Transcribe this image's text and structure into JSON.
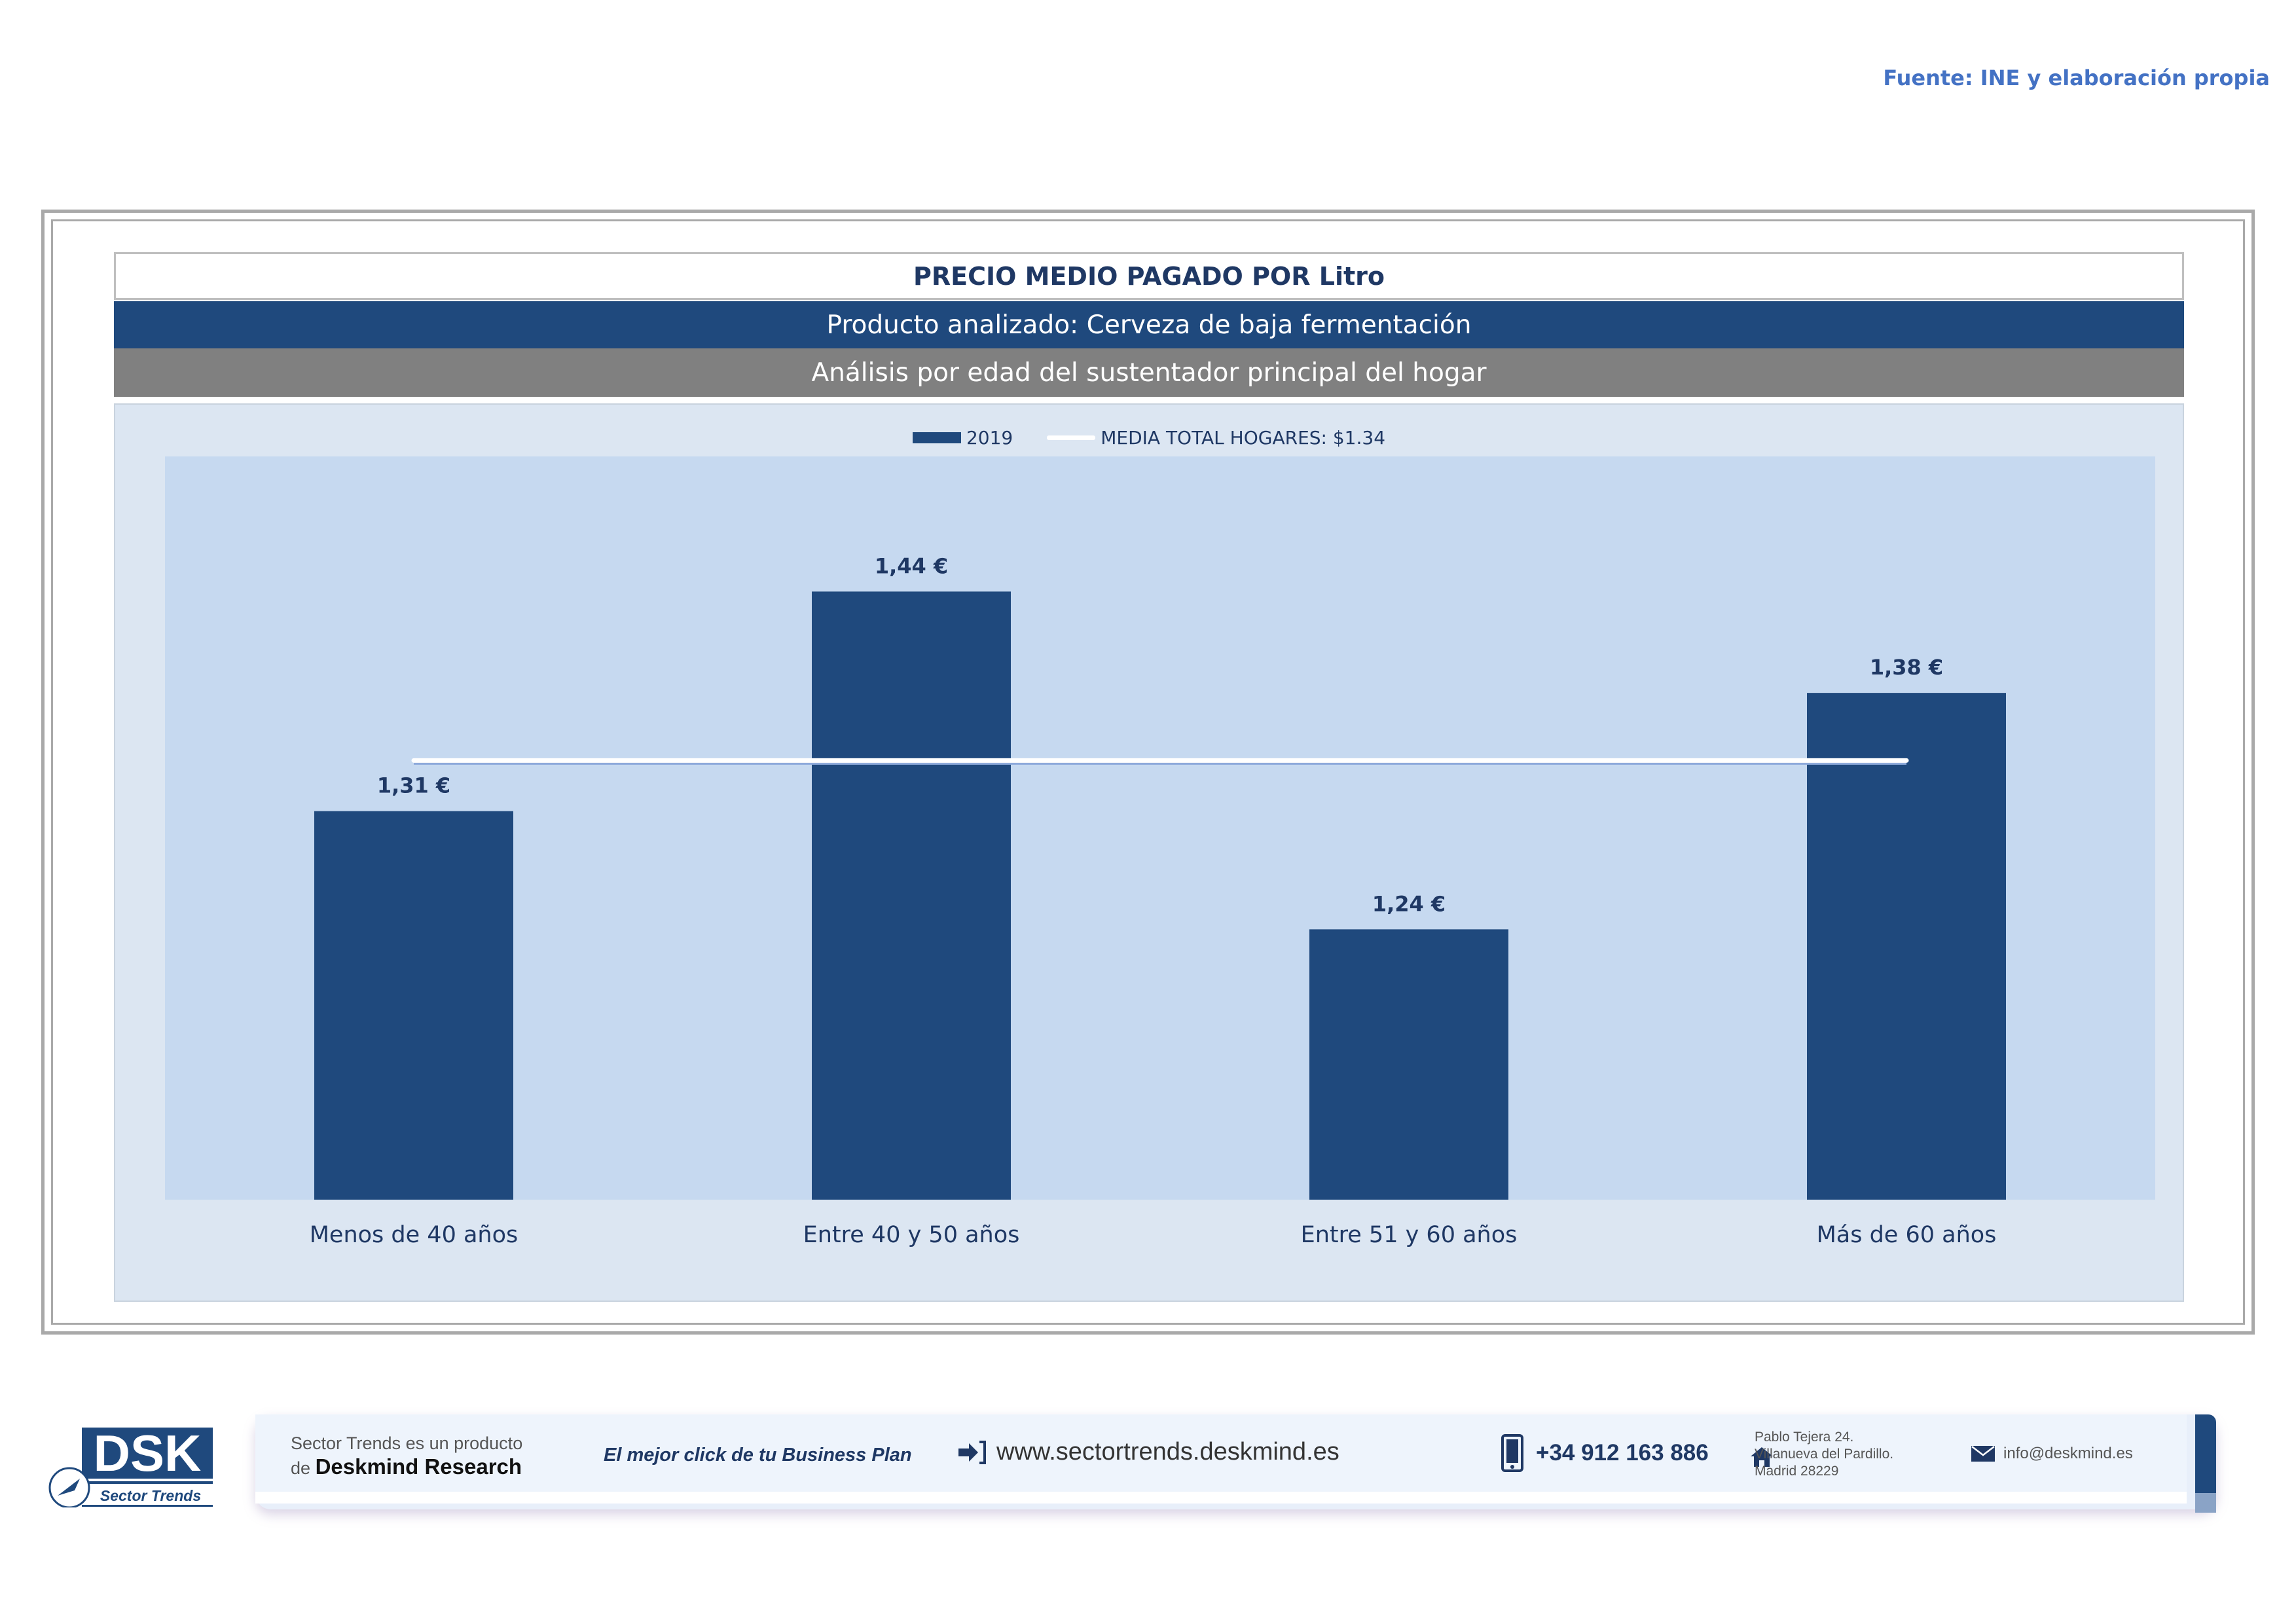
{
  "source_note": "Fuente: INE y elaboración propia",
  "header": {
    "title": "PRECIO MEDIO PAGADO POR Litro",
    "product": "Producto analizado: Cerveza de baja fermentación",
    "analysis": "Análisis por edad del sustentador principal del hogar"
  },
  "legend": {
    "bar_label": "2019",
    "line_label": "MEDIA TOTAL  HOGARES:   $1.34"
  },
  "chart_data": {
    "type": "bar",
    "categories": [
      "Menos de 40 años",
      "Entre 40 y 50 años",
      "Entre 51  y 60 años",
      "Más de 60 años"
    ],
    "series": [
      {
        "name": "2019",
        "values": [
          1.31,
          1.44,
          1.24,
          1.38
        ],
        "labels": [
          "1,31 €",
          "1,44 €",
          "1,24 €",
          "1,38 €"
        ]
      }
    ],
    "reference_line": {
      "name": "MEDIA TOTAL  HOGARES",
      "value": 1.34
    },
    "ylim": [
      1.08,
      1.52
    ],
    "grid": false,
    "legend_position": "top",
    "colors": {
      "bar": "#1f497d",
      "reference_line": "#ffffff",
      "plot_bg": "#c6d9f0"
    }
  },
  "footer": {
    "logo_text": "DSK",
    "logo_subtitle": "Sector Trends",
    "product_line1": "Sector Trends es un producto",
    "product_line2_prefix": "de",
    "product_line2_brand": "Deskmind Research",
    "slogan": "El mejor click de tu Business Plan",
    "website": "www.sectortrends.deskmind.es",
    "phone": "+34 912 163 886",
    "address_line1": "Pablo Tejera 24.",
    "address_line2": "Villanueva del Pardillo.",
    "address_line3": "Madrid 28229",
    "email": "info@deskmind.es"
  }
}
